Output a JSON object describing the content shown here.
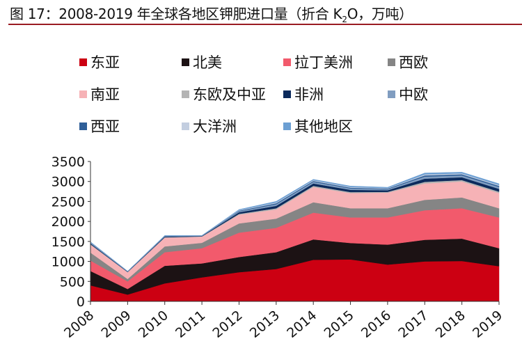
{
  "chart_data": {
    "type": "area",
    "stacked": true,
    "title": "图 17：2008-2019 年全球各地区钾肥进口量（折合 K2O，万吨）",
    "title_parts": {
      "prefix": "图 17：2008-2019 年全球各地区钾肥进口量（折合 K",
      "sub": "2",
      "suffix": "O，万吨）"
    },
    "xlabel": "",
    "ylabel": "",
    "ylim": [
      0,
      3500
    ],
    "yticks": [
      0,
      500,
      1000,
      1500,
      2000,
      2500,
      3000,
      3500
    ],
    "categories": [
      "2008",
      "2009",
      "2010",
      "2011",
      "2012",
      "2013",
      "2014",
      "2015",
      "2016",
      "2017",
      "2018",
      "2019"
    ],
    "grid": false,
    "legend_position": "top",
    "series": [
      {
        "name": "东亚",
        "color": "#cc0012",
        "values": [
          400,
          170,
          450,
          600,
          730,
          810,
          1040,
          1050,
          920,
          1000,
          1010,
          880
        ]
      },
      {
        "name": "北美",
        "color": "#1c1214",
        "values": [
          360,
          140,
          440,
          350,
          380,
          420,
          510,
          410,
          500,
          540,
          560,
          450
        ]
      },
      {
        "name": "拉丁美洲",
        "color": "#f25a6c",
        "values": [
          260,
          190,
          340,
          380,
          610,
          610,
          670,
          640,
          680,
          740,
          760,
          770
        ]
      },
      {
        "name": "西欧",
        "color": "#858585",
        "values": [
          200,
          60,
          145,
          135,
          230,
          230,
          260,
          230,
          230,
          260,
          270,
          230
        ]
      },
      {
        "name": "南亚",
        "color": "#f6b2b6",
        "values": [
          200,
          170,
          220,
          155,
          220,
          230,
          380,
          380,
          390,
          410,
          400,
          380
        ]
      },
      {
        "name": "东欧及中亚",
        "color": "#b4b4b4",
        "values": [
          10,
          4,
          8,
          5,
          20,
          30,
          30,
          25,
          20,
          40,
          35,
          35
        ]
      },
      {
        "name": "非洲",
        "color": "#0b2a5c",
        "values": [
          20,
          8,
          17,
          9,
          40,
          60,
          60,
          55,
          40,
          80,
          70,
          70
        ]
      },
      {
        "name": "中欧",
        "color": "#809dc0",
        "values": [
          15,
          5,
          11,
          6,
          25,
          40,
          40,
          35,
          27,
          52,
          47,
          47
        ]
      },
      {
        "name": "西亚",
        "color": "#2f5f98",
        "values": [
          8,
          4,
          7,
          4,
          15,
          25,
          23,
          20,
          16,
          30,
          28,
          28
        ]
      },
      {
        "name": "大洋洲",
        "color": "#c3cee0",
        "values": [
          7,
          3,
          5,
          3,
          13,
          20,
          19,
          18,
          13,
          26,
          23,
          23
        ]
      },
      {
        "name": "其他地区",
        "color": "#6c9fd3",
        "values": [
          10,
          3,
          7,
          3,
          15,
          28,
          21,
          22,
          18,
          34,
          30,
          30
        ]
      }
    ]
  }
}
